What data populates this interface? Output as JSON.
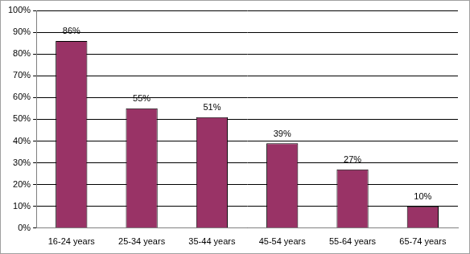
{
  "chart_data": {
    "type": "bar",
    "categories": [
      "16-24 years",
      "25-34 years",
      "35-44 years",
      "45-54 years",
      "55-64 years",
      "65-74 years"
    ],
    "values": [
      86,
      55,
      51,
      39,
      27,
      10
    ],
    "value_labels": [
      "86%",
      "55%",
      "51%",
      "39%",
      "27%",
      "10%"
    ],
    "data_labels": true,
    "color": "#993366",
    "ylim": [
      0,
      100
    ],
    "yticks": [
      {
        "value": 0,
        "label": "0%"
      },
      {
        "value": 10,
        "label": "10%"
      },
      {
        "value": 20,
        "label": "20%"
      },
      {
        "value": 30,
        "label": "30%"
      },
      {
        "value": 40,
        "label": "40%"
      },
      {
        "value": 50,
        "label": "50%"
      },
      {
        "value": 60,
        "label": "60%"
      },
      {
        "value": 70,
        "label": "70%"
      },
      {
        "value": 80,
        "label": "80%"
      },
      {
        "value": 90,
        "label": "90%"
      },
      {
        "value": 100,
        "label": "100%"
      }
    ],
    "grid": true
  }
}
